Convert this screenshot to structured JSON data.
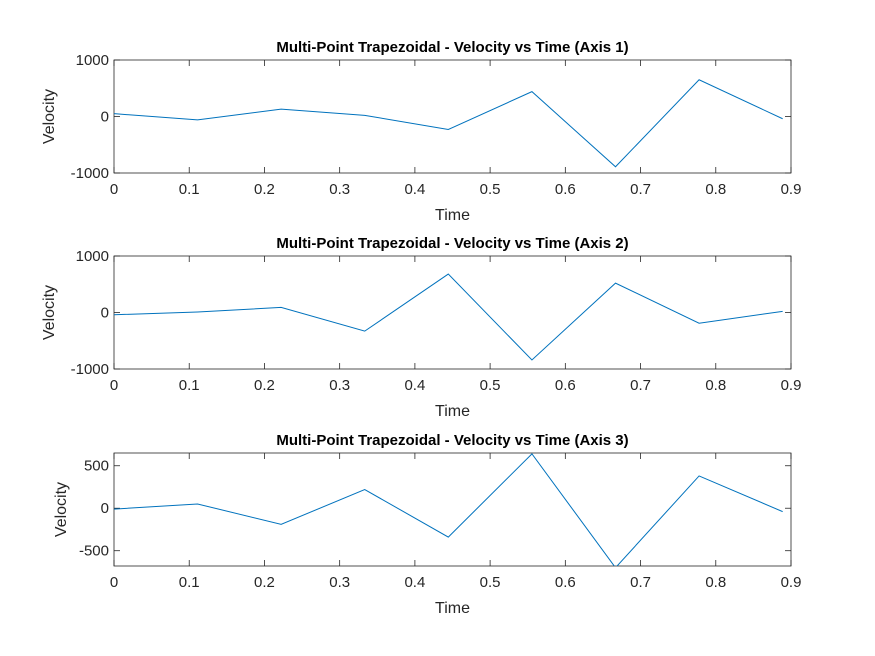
{
  "chart_data": [
    {
      "type": "line",
      "title": "Multi-Point Trapezoidal - Velocity vs Time (Axis 1)",
      "xlabel": "Time",
      "ylabel": "Velocity",
      "xlim": [
        0,
        0.9
      ],
      "ylim": [
        -1000,
        1000
      ],
      "xticks": [
        0,
        0.1,
        0.2,
        0.3,
        0.4,
        0.5,
        0.6,
        0.7,
        0.8,
        0.9
      ],
      "xtick_labels": [
        "0",
        "0.1",
        "0.2",
        "0.3",
        "0.4",
        "0.5",
        "0.6",
        "0.7",
        "0.8",
        "0.9"
      ],
      "yticks": [
        -1000,
        0,
        1000
      ],
      "ytick_labels": [
        "-1000",
        "0",
        "1000"
      ],
      "grid": false,
      "color": "#0072BD",
      "x": [
        0,
        0.1111,
        0.2222,
        0.3333,
        0.4444,
        0.5556,
        0.6667,
        0.7778,
        0.8889
      ],
      "y": [
        50,
        -60,
        130,
        20,
        -230,
        440,
        -890,
        650,
        -40
      ]
    },
    {
      "type": "line",
      "title": "Multi-Point Trapezoidal - Velocity vs Time (Axis 2)",
      "xlabel": "Time",
      "ylabel": "Velocity",
      "xlim": [
        0,
        0.9
      ],
      "ylim": [
        -1000,
        1000
      ],
      "xticks": [
        0,
        0.1,
        0.2,
        0.3,
        0.4,
        0.5,
        0.6,
        0.7,
        0.8,
        0.9
      ],
      "xtick_labels": [
        "0",
        "0.1",
        "0.2",
        "0.3",
        "0.4",
        "0.5",
        "0.6",
        "0.7",
        "0.8",
        "0.9"
      ],
      "yticks": [
        -1000,
        0,
        1000
      ],
      "ytick_labels": [
        "-1000",
        "0",
        "1000"
      ],
      "grid": false,
      "color": "#0072BD",
      "x": [
        0,
        0.1111,
        0.2222,
        0.3333,
        0.4444,
        0.5556,
        0.6667,
        0.7778,
        0.8889
      ],
      "y": [
        -40,
        10,
        90,
        -330,
        680,
        -840,
        520,
        -190,
        20
      ]
    },
    {
      "type": "line",
      "title": "Multi-Point Trapezoidal - Velocity vs Time (Axis 3)",
      "xlabel": "Time",
      "ylabel": "Velocity",
      "xlim": [
        0,
        0.9
      ],
      "ylim": [
        -680,
        650
      ],
      "xticks": [
        0,
        0.1,
        0.2,
        0.3,
        0.4,
        0.5,
        0.6,
        0.7,
        0.8,
        0.9
      ],
      "xtick_labels": [
        "0",
        "0.1",
        "0.2",
        "0.3",
        "0.4",
        "0.5",
        "0.6",
        "0.7",
        "0.8",
        "0.9"
      ],
      "yticks": [
        -500,
        0,
        500
      ],
      "ytick_labels": [
        "-500",
        "0",
        "500"
      ],
      "grid": false,
      "color": "#0072BD",
      "x": [
        0,
        0.1111,
        0.2222,
        0.3333,
        0.4444,
        0.5556,
        0.6667,
        0.7778,
        0.8889
      ],
      "y": [
        -10,
        50,
        -190,
        220,
        -340,
        640,
        -700,
        380,
        -40
      ]
    }
  ]
}
